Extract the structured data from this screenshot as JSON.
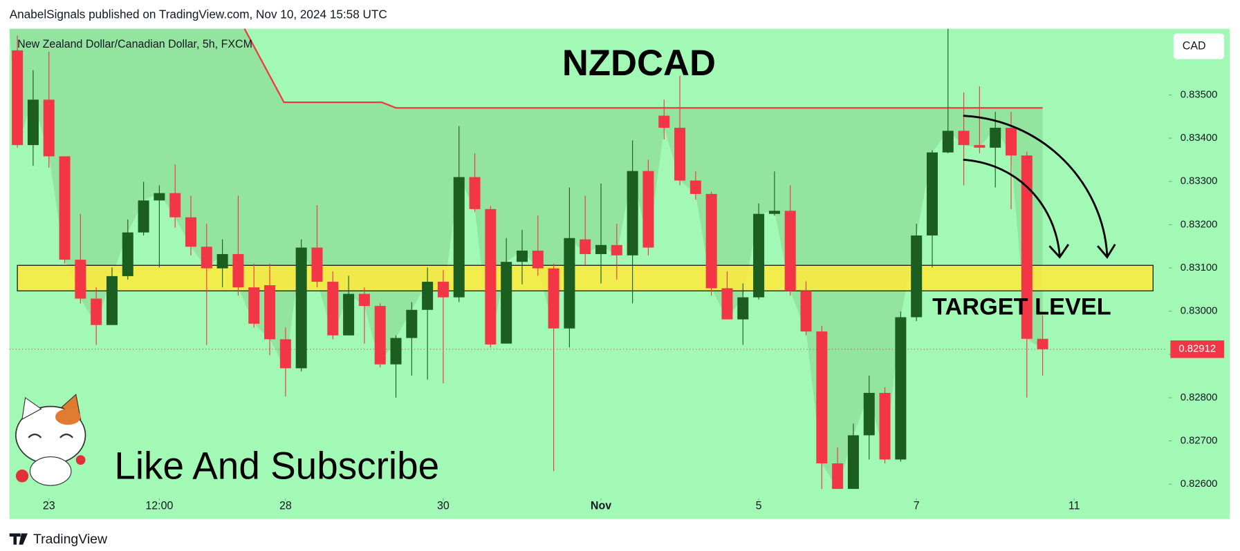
{
  "header": "AnabelSignals published on TradingView.com, Nov 10, 2024 15:58 UTC",
  "footer": "TradingView",
  "chart_data": {
    "type": "candlestick",
    "title": "NZDCAD",
    "symbol": "New Zealand Dollar/Canadian Dollar, 5h, FXCM",
    "currency": "CAD",
    "annotations": [
      "TARGET LEVEL",
      "Like And Subscribe"
    ],
    "background": "#a2f9b6",
    "up_color": "#1b5e20",
    "down_color": "#f23645",
    "grid": false,
    "open": [
      0.83603,
      0.83384,
      0.83489,
      0.83358,
      0.83119,
      0.83029,
      0.82968,
      0.83081,
      0.83182,
      0.83256,
      0.83273,
      0.83217,
      0.83149,
      0.83099,
      0.83132,
      0.83055,
      0.8306,
      0.82935,
      0.82868,
      0.83147,
      0.83068,
      0.82944,
      0.8304,
      0.83012,
      0.82877,
      0.82938,
      0.83003,
      0.83068,
      0.83032,
      0.8331,
      0.83236,
      0.82925,
      0.83114,
      0.8314,
      0.83099,
      0.8296,
      0.83166,
      0.83132,
      0.83153,
      0.83129,
      0.83324,
      0.83452,
      0.83424,
      0.83302,
      0.83271,
      0.83053,
      0.82981,
      0.83032,
      0.83225,
      0.83232,
      0.83047,
      0.82953,
      0.82648,
      0.82589,
      0.82713,
      0.82811,
      0.82657,
      0.82986,
      0.83175,
      0.83367,
      0.83417,
      0.83384,
      0.83378,
      0.83424,
      0.8336,
      0.82936
    ],
    "high": [
      0.83637,
      0.83557,
      0.836,
      0.83358,
      0.83225,
      0.83055,
      0.83101,
      0.83212,
      0.83299,
      0.83291,
      0.83339,
      0.83267,
      0.83202,
      0.83166,
      0.83267,
      0.8311,
      0.8311,
      0.82962,
      0.83166,
      0.83245,
      0.83092,
      0.83082,
      0.83055,
      0.83018,
      0.82944,
      0.83021,
      0.83101,
      0.83095,
      0.83428,
      0.83365,
      0.83243,
      0.83169,
      0.83188,
      0.83221,
      0.8311,
      0.83286,
      0.83267,
      0.83295,
      0.83202,
      0.83395,
      0.8335,
      0.83489,
      0.83544,
      0.83323,
      0.83276,
      0.83092,
      0.83064,
      0.83249,
      0.83323,
      0.83291,
      0.83069,
      0.82966,
      0.82685,
      0.8274,
      0.82851,
      0.82824,
      0.82999,
      0.83202,
      0.83372,
      0.83653,
      0.83506,
      0.8352,
      0.83461,
      0.83461,
      0.83369,
      0.8299
    ],
    "low": [
      0.83378,
      0.83336,
      0.83332,
      0.8311,
      0.83018,
      0.82922,
      0.82968,
      0.83073,
      0.83175,
      0.83101,
      0.83193,
      0.83129,
      0.82922,
      0.83055,
      0.83036,
      0.82962,
      0.82898,
      0.82803,
      0.82861,
      0.83055,
      0.82935,
      0.82944,
      0.82925,
      0.8287,
      0.828,
      0.82851,
      0.82842,
      0.82833,
      0.83021,
      0.8323,
      0.82916,
      0.82925,
      0.83062,
      0.83082,
      0.8263,
      0.82916,
      0.83106,
      0.83064,
      0.83073,
      0.83018,
      0.83129,
      0.83397,
      0.83291,
      0.83258,
      0.83036,
      0.82981,
      0.82922,
      0.83027,
      0.83221,
      0.83036,
      0.82944,
      0.82589,
      0.82589,
      0.82589,
      0.82657,
      0.82648,
      0.82652,
      0.82977,
      0.83101,
      0.83365,
      0.83291,
      0.83365,
      0.83286,
      0.83236,
      0.828,
      0.82851
    ],
    "close": [
      0.83384,
      0.83489,
      0.83358,
      0.83119,
      0.83029,
      0.82968,
      0.83081,
      0.83182,
      0.83256,
      0.83273,
      0.83217,
      0.83149,
      0.83099,
      0.83132,
      0.83055,
      0.82971,
      0.82935,
      0.82868,
      0.83147,
      0.83068,
      0.82944,
      0.8304,
      0.83012,
      0.82877,
      0.82938,
      0.83003,
      0.83068,
      0.83032,
      0.8331,
      0.83236,
      0.82923,
      0.83114,
      0.8314,
      0.83099,
      0.8296,
      0.83169,
      0.83132,
      0.83153,
      0.83129,
      0.83324,
      0.83147,
      0.83424,
      0.83302,
      0.83271,
      0.83053,
      0.82981,
      0.83032,
      0.83225,
      0.83232,
      0.83047,
      0.82953,
      0.82648,
      0.82589,
      0.82713,
      0.82811,
      0.82657,
      0.82986,
      0.83175,
      0.83367,
      0.83417,
      0.83384,
      0.83378,
      0.83424,
      0.8336,
      0.82936,
      0.82912
    ],
    "last_price": 0.82912,
    "overlay_line": {
      "color": "#f23645",
      "x": [
        14.4,
        16.9,
        23.1,
        24,
        65
      ],
      "values": [
        0.83653,
        0.83483,
        0.83483,
        0.8347,
        0.8347
      ]
    },
    "zone": {
      "color": "#ffeb3b",
      "x": [
        0,
        72
      ],
      "values": [
        0.83047,
        0.83106
      ]
    },
    "xlim": [
      -0.5,
      72.9
    ],
    "xticks": [
      {
        "value": 2,
        "label": "23"
      },
      {
        "value": 9,
        "label": "12:00"
      },
      {
        "value": 17,
        "label": "28"
      },
      {
        "value": 27,
        "label": "30"
      },
      {
        "value": 37,
        "label": "Nov"
      },
      {
        "value": 47,
        "label": "5"
      },
      {
        "value": 57,
        "label": "7"
      },
      {
        "value": 67,
        "label": "11"
      }
    ],
    "ylim": [
      0.82571,
      0.83653
    ],
    "yticks": [
      {
        "value": 0.826,
        "label": "0.82600"
      },
      {
        "value": 0.827,
        "label": "0.82700"
      },
      {
        "value": 0.828,
        "label": "0.82800"
      },
      {
        "value": 0.829,
        "label": "0.82900"
      },
      {
        "value": 0.83,
        "label": "0.83000"
      },
      {
        "value": 0.831,
        "label": "0.83100"
      },
      {
        "value": 0.832,
        "label": "0.83200"
      },
      {
        "value": 0.833,
        "label": "0.83300"
      },
      {
        "value": 0.834,
        "label": "0.83400"
      },
      {
        "value": 0.835,
        "label": "0.83500"
      }
    ]
  }
}
